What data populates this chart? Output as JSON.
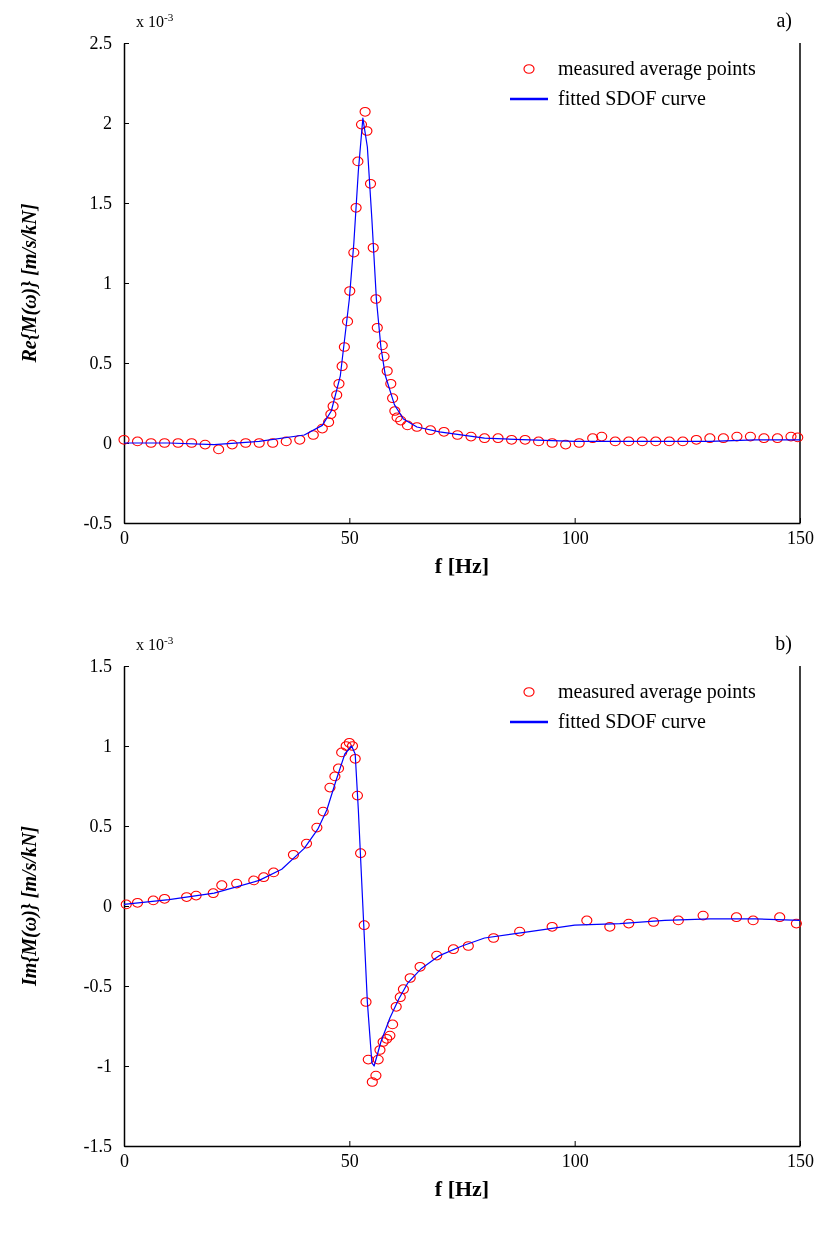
{
  "chart_data": [
    {
      "type": "scatter",
      "title": "a)",
      "annotations": [
        "x 10$^{-3}$"
      ],
      "xlabel": "f [Hz]",
      "ylabel": "Re{M(ω)} [m/s/kN]",
      "xlim": [
        0,
        150
      ],
      "xticks": [
        0,
        50,
        100,
        150
      ],
      "ylim": [
        -0.5,
        2.5
      ],
      "yticks": [
        -0.5,
        0,
        0.5,
        1,
        1.5,
        2,
        2.5
      ],
      "grid": false,
      "legend": "top right",
      "series": [
        {
          "name": "measured average points",
          "marker": "circle",
          "color": "#ff0000",
          "x": [
            0,
            3,
            6,
            9,
            12,
            15,
            18,
            21,
            24,
            27,
            30,
            33,
            36,
            39,
            42,
            44,
            45.4,
            45.9,
            46.4,
            47.2,
            47.7,
            48.4,
            48.9,
            49.6,
            50.1,
            51,
            51.5,
            51.9,
            52.7,
            53.5,
            53.9,
            54.7,
            55.3,
            55.9,
            56.2,
            57.3,
            57.7,
            58.4,
            59.2,
            59.6,
            60.1,
            60.6,
            61.4,
            62.9,
            65,
            68,
            71,
            74,
            77,
            80,
            83,
            86,
            89,
            92,
            95,
            98,
            101,
            104,
            106,
            109,
            112,
            115,
            118,
            121,
            124,
            127,
            130,
            133,
            136,
            139,
            142,
            145,
            148,
            149.5
          ],
          "values": [
            0.02,
            0.01,
            0,
            0,
            0,
            0,
            -0.01,
            -0.04,
            -0.01,
            0,
            0,
            0,
            0.01,
            0.02,
            0.05,
            0.09,
            0.13,
            0.18,
            0.23,
            0.3,
            0.37,
            0.48,
            0.6,
            0.76,
            0.95,
            1.19,
            1.47,
            1.76,
            1.99,
            2.07,
            1.95,
            1.62,
            1.22,
            0.9,
            0.72,
            0.61,
            0.54,
            0.45,
            0.37,
            0.28,
            0.2,
            0.16,
            0.14,
            0.11,
            0.1,
            0.08,
            0.07,
            0.05,
            0.04,
            0.03,
            0.03,
            0.02,
            0.02,
            0.01,
            0,
            -0.01,
            0,
            0.03,
            0.04,
            0.01,
            0.01,
            0.01,
            0.01,
            0.01,
            0.01,
            0.02,
            0.03,
            0.03,
            0.04,
            0.04,
            0.03,
            0.03,
            0.04,
            0.035
          ]
        },
        {
          "name": "fitted SDOF curve",
          "type": "line",
          "line_style": "solid",
          "color": "#0000ff",
          "x": [
            0,
            10,
            20,
            30,
            40,
            44,
            46,
            48,
            50,
            51,
            52,
            53,
            54,
            55,
            56,
            57,
            58,
            60,
            62,
            65,
            70,
            80,
            90,
            100,
            110,
            120,
            130,
            140,
            150
          ],
          "values": [
            0,
            0,
            -0.01,
            0.01,
            0.05,
            0.11,
            0.2,
            0.42,
            0.9,
            1.25,
            1.7,
            2.03,
            1.85,
            1.4,
            0.9,
            0.6,
            0.42,
            0.24,
            0.15,
            0.1,
            0.07,
            0.03,
            0.02,
            0.01,
            0.01,
            0.01,
            0.01,
            0.02,
            0.02
          ]
        }
      ]
    },
    {
      "type": "scatter",
      "title": "b)",
      "annotations": [
        "x 10$^{-3}$"
      ],
      "xlabel": "f [Hz]",
      "ylabel": "Im{M(ω)} [m/s/kN]",
      "xlim": [
        0,
        150
      ],
      "xticks": [
        0,
        50,
        100,
        150
      ],
      "ylim": [
        -1.5,
        1.5
      ],
      "yticks": [
        -1.5,
        -1,
        -0.5,
        0,
        0.5,
        1,
        1.5
      ],
      "grid": false,
      "legend": "top right",
      "series": [
        {
          "name": "measured average points",
          "marker": "circle",
          "color": "#ff0000",
          "x": [
            0.5,
            3,
            6.5,
            9,
            13.9,
            16,
            19.8,
            21.7,
            25,
            28.8,
            31,
            33.2,
            37.6,
            40.5,
            42.8,
            44.2,
            45.7,
            46.8,
            47.6,
            48.3,
            49.3,
            50,
            50.7,
            51.3,
            51.8,
            52.5,
            53.3,
            53.7,
            54.2,
            55.1,
            55.9,
            56.4,
            56.8,
            57.5,
            58.3,
            59,
            59.6,
            60.4,
            61.3,
            62,
            63.5,
            65.7,
            69.4,
            73.1,
            76.4,
            82,
            87.8,
            95,
            102.7,
            107.8,
            112,
            117.5,
            123,
            128.5,
            135.9,
            139.6,
            145.5,
            149.2
          ],
          "values": [
            0.01,
            0.02,
            0.035,
            0.045,
            0.056,
            0.065,
            0.08,
            0.13,
            0.14,
            0.16,
            0.18,
            0.21,
            0.32,
            0.39,
            0.49,
            0.59,
            0.74,
            0.81,
            0.86,
            0.96,
            1,
            1.02,
            1,
            0.92,
            0.69,
            0.33,
            -0.12,
            -0.6,
            -0.96,
            -1.1,
            -1.06,
            -0.96,
            -0.9,
            -0.85,
            -0.83,
            -0.81,
            -0.74,
            -0.63,
            -0.57,
            -0.52,
            -0.45,
            -0.38,
            -0.31,
            -0.27,
            -0.25,
            -0.2,
            -0.16,
            -0.13,
            -0.09,
            -0.13,
            -0.11,
            -0.1,
            -0.09,
            -0.06,
            -0.07,
            -0.09,
            -0.07,
            -0.11
          ]
        },
        {
          "name": "fitted SDOF curve",
          "type": "line",
          "line_style": "solid",
          "color": "#0000ff",
          "x": [
            0,
            10,
            20,
            30,
            35,
            40,
            43,
            45,
            47,
            49,
            50.5,
            51.3,
            52,
            53,
            54,
            55,
            55.5,
            57,
            59,
            61,
            63,
            66,
            70,
            75,
            80,
            90,
            100,
            110,
            120,
            130,
            140,
            150
          ],
          "values": [
            0.01,
            0.04,
            0.08,
            0.16,
            0.23,
            0.36,
            0.48,
            0.6,
            0.78,
            0.95,
            1,
            0.95,
            0.6,
            0,
            -0.6,
            -0.98,
            -1,
            -0.85,
            -0.7,
            -0.58,
            -0.48,
            -0.39,
            -0.31,
            -0.25,
            -0.2,
            -0.16,
            -0.12,
            -0.11,
            -0.09,
            -0.08,
            -0.08,
            -0.09
          ]
        }
      ]
    }
  ]
}
